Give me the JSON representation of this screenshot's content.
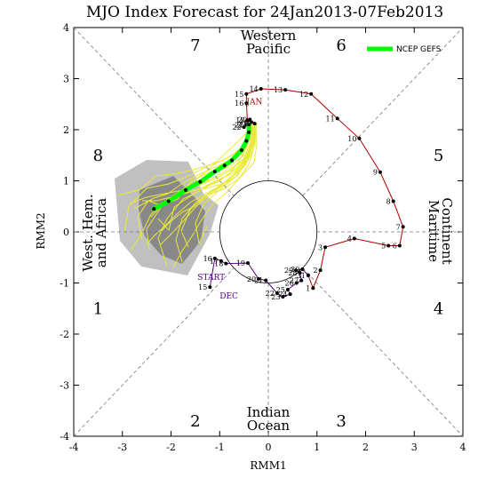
{
  "chart_data": {
    "type": "line",
    "title": "MJO Index Forecast for 24Jan2013-07Feb2013",
    "xlabel": "RMM1",
    "ylabel": "RMM2",
    "xlim": [
      -4,
      4
    ],
    "ylim": [
      -4,
      4
    ],
    "x_ticks": [
      "-4",
      "-3",
      "-2",
      "-1",
      "0",
      "1",
      "2",
      "3",
      "4"
    ],
    "y_ticks": [
      "-4",
      "-3",
      "-2",
      "-1",
      "0",
      "1",
      "2",
      "3",
      "4"
    ],
    "phases": [
      {
        "label": "1",
        "x": -3.5,
        "y": -1.5
      },
      {
        "label": "2",
        "x": -1.5,
        "y": -3.7
      },
      {
        "label": "3",
        "x": 1.5,
        "y": -3.7
      },
      {
        "label": "4",
        "x": 3.5,
        "y": -1.5
      },
      {
        "label": "5",
        "x": 3.5,
        "y": 1.5
      },
      {
        "label": "6",
        "x": 1.5,
        "y": 3.65
      },
      {
        "label": "7",
        "x": -1.5,
        "y": 3.65
      },
      {
        "label": "8",
        "x": -3.5,
        "y": 1.5
      }
    ],
    "regions": {
      "top": [
        "Western",
        "Pacific"
      ],
      "bottom": [
        "Indian",
        "Ocean"
      ],
      "left": [
        "West. Hem.",
        "and Africa"
      ],
      "right": [
        "Maritime",
        "Continent"
      ]
    },
    "legend": {
      "label": "NCEP GEFS",
      "color": "#00ff00",
      "position": "top-right"
    },
    "start_label": "START",
    "month_labels": [
      {
        "text": "DEC",
        "x": -1.0,
        "y": -1.3,
        "color": "#550088"
      },
      {
        "text": "JAN",
        "x": -0.45,
        "y": 2.5,
        "color": "#aa0000"
      }
    ],
    "series": [
      {
        "name": "DEC",
        "color": "#550088",
        "points": [
          {
            "x": -1.2,
            "y": -1.08,
            "label": "15"
          },
          {
            "x": -1.1,
            "y": -0.52,
            "label": "16"
          },
          {
            "x": -0.97,
            "y": -0.57,
            "label": "17"
          },
          {
            "x": -0.87,
            "y": -0.62,
            "label": "18"
          },
          {
            "x": -0.42,
            "y": -0.61,
            "label": "19"
          },
          {
            "x": -0.2,
            "y": -0.92,
            "label": "20"
          },
          {
            "x": -0.05,
            "y": -0.95,
            "label": "21"
          },
          {
            "x": 0.18,
            "y": -1.2,
            "label": "22"
          },
          {
            "x": 0.3,
            "y": -1.27,
            "label": "23"
          },
          {
            "x": 0.45,
            "y": -1.22,
            "label": "24"
          },
          {
            "x": 0.4,
            "y": -1.13,
            "label": "25"
          },
          {
            "x": 0.58,
            "y": -1.0,
            "label": "26"
          },
          {
            "x": 0.68,
            "y": -0.95,
            "label": "27"
          },
          {
            "x": 0.65,
            "y": -0.8,
            "label": "28"
          },
          {
            "x": 0.57,
            "y": -0.75,
            "label": "29"
          },
          {
            "x": 0.7,
            "y": -0.73,
            "label": "30"
          },
          {
            "x": 0.82,
            "y": -0.85,
            "label": "31"
          }
        ]
      },
      {
        "name": "JAN",
        "color": "#aa0000",
        "points": [
          {
            "x": 0.82,
            "y": -0.85,
            "label": ""
          },
          {
            "x": 0.92,
            "y": -1.1,
            "label": "1"
          },
          {
            "x": 1.07,
            "y": -0.75,
            "label": "2"
          },
          {
            "x": 1.17,
            "y": -0.3,
            "label": "3"
          },
          {
            "x": 1.77,
            "y": -0.13,
            "label": "4"
          },
          {
            "x": 2.47,
            "y": -0.27,
            "label": "5"
          },
          {
            "x": 2.7,
            "y": -0.27,
            "label": "6"
          },
          {
            "x": 2.77,
            "y": 0.1,
            "label": "7"
          },
          {
            "x": 2.57,
            "y": 0.6,
            "label": "8"
          },
          {
            "x": 2.3,
            "y": 1.17,
            "label": "9"
          },
          {
            "x": 1.87,
            "y": 1.83,
            "label": "10"
          },
          {
            "x": 1.42,
            "y": 2.22,
            "label": "11"
          },
          {
            "x": 0.88,
            "y": 2.7,
            "label": "12"
          },
          {
            "x": 0.35,
            "y": 2.78,
            "label": "13"
          },
          {
            "x": -0.15,
            "y": 2.8,
            "label": "14"
          },
          {
            "x": -0.45,
            "y": 2.7,
            "label": "15"
          },
          {
            "x": -0.45,
            "y": 2.52,
            "label": "16"
          },
          {
            "x": -0.43,
            "y": 2.18,
            "label": "17"
          },
          {
            "x": -0.35,
            "y": 2.15,
            "label": "18"
          },
          {
            "x": -0.28,
            "y": 2.12,
            "label": "19"
          },
          {
            "x": -0.38,
            "y": 2.2,
            "label": "20"
          },
          {
            "x": -0.45,
            "y": 2.1,
            "label": "21"
          },
          {
            "x": -0.5,
            "y": 2.05,
            "label": "22"
          },
          {
            "x": -0.4,
            "y": 2.1,
            "label": "23"
          }
        ]
      },
      {
        "name": "NCEP GEFS",
        "color": "#00ff00",
        "points": [
          {
            "x": -0.4,
            "y": 2.1
          },
          {
            "x": -0.4,
            "y": 1.95
          },
          {
            "x": -0.45,
            "y": 1.78
          },
          {
            "x": -0.55,
            "y": 1.6
          },
          {
            "x": -0.75,
            "y": 1.4
          },
          {
            "x": -0.9,
            "y": 1.3
          },
          {
            "x": -1.1,
            "y": 1.18
          },
          {
            "x": -1.4,
            "y": 0.98
          },
          {
            "x": -1.7,
            "y": 0.82
          },
          {
            "x": -2.05,
            "y": 0.6
          },
          {
            "x": -2.35,
            "y": 0.45
          }
        ]
      }
    ]
  }
}
